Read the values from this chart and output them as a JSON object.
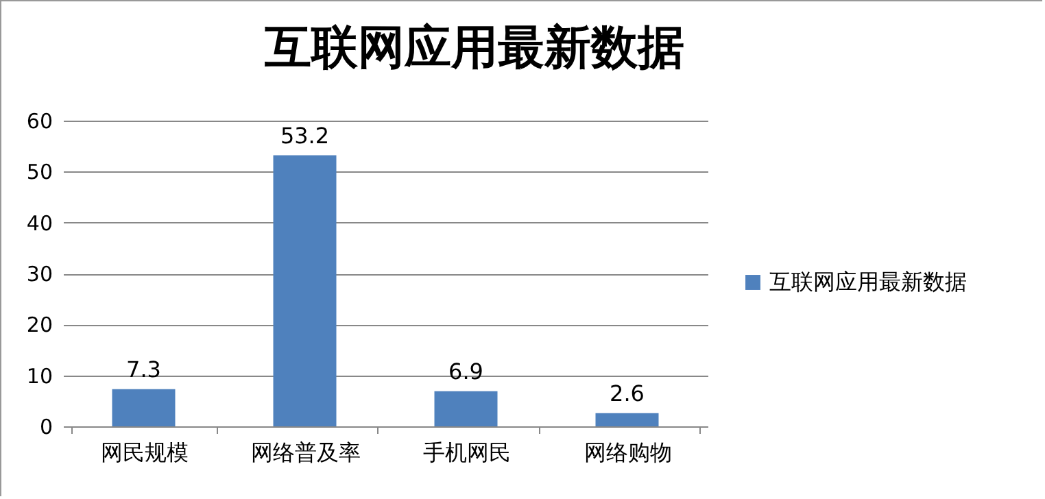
{
  "chart_data": {
    "type": "bar",
    "title": "互联网应用最新数据",
    "categories": [
      "网民规模",
      "网络普及率",
      "手机网民",
      "网络购物"
    ],
    "series": [
      {
        "name": "互联网应用最新数据",
        "color": "#4f81bd",
        "values": [
          7.3,
          53.2,
          6.9,
          2.6
        ]
      }
    ],
    "ylim": [
      0,
      60
    ],
    "yticks": [
      0,
      10,
      20,
      30,
      40,
      50,
      60
    ],
    "grid": "y",
    "legend": "right",
    "data_labels": true
  }
}
